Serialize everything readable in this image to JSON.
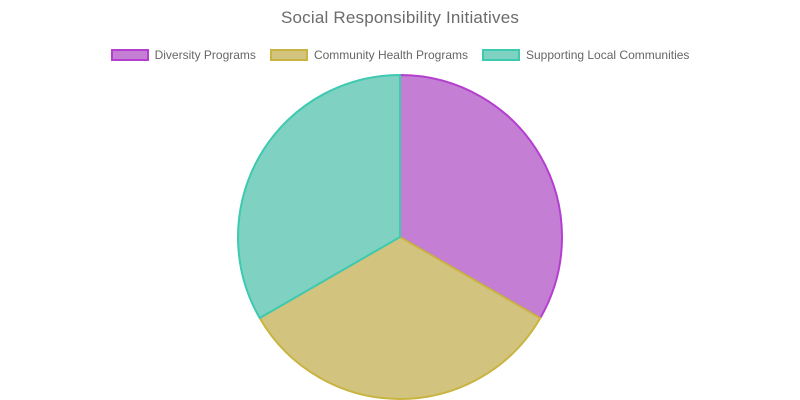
{
  "chart_data": {
    "type": "pie",
    "title": "Social Responsibility Initiatives",
    "legend_position": "top",
    "categories": [
      "Diversity Programs",
      "Community Health Programs",
      "Supporting Local Communities"
    ],
    "values": [
      1,
      1,
      1
    ],
    "fill_colors": [
      "#c47fd5",
      "#d2c47f",
      "#7fd1c2"
    ],
    "border_colors": [
      "#b43fcf",
      "#c9b441",
      "#3ec9b1"
    ]
  }
}
